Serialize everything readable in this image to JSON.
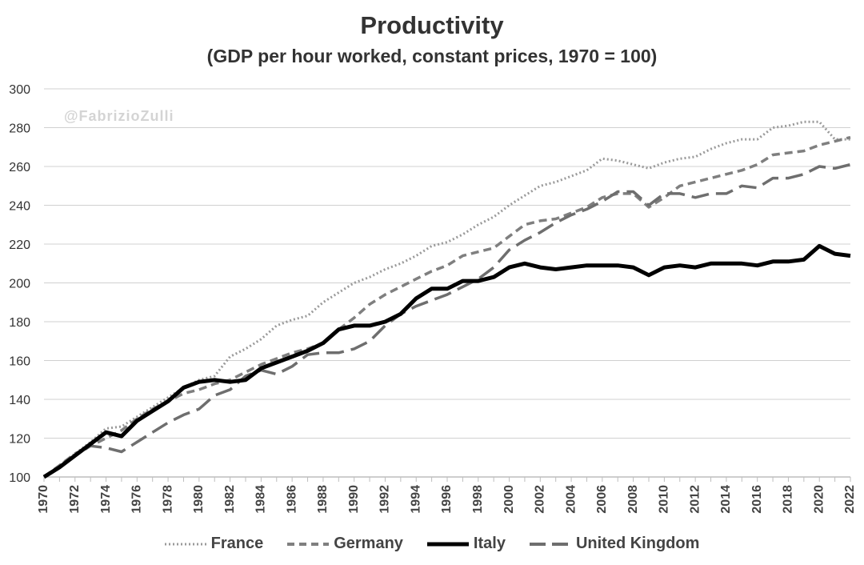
{
  "chart_data": {
    "type": "line",
    "title": "Productivity",
    "subtitle": "(GDP per hour worked, constant prices, 1970 = 100)",
    "watermark": "@FabrizioZulli",
    "xlabel": "",
    "ylabel": "",
    "x": [
      1970,
      1971,
      1972,
      1973,
      1974,
      1975,
      1976,
      1977,
      1978,
      1979,
      1980,
      1981,
      1982,
      1983,
      1984,
      1985,
      1986,
      1987,
      1988,
      1989,
      1990,
      1991,
      1992,
      1993,
      1994,
      1995,
      1996,
      1997,
      1998,
      1999,
      2000,
      2001,
      2002,
      2003,
      2004,
      2005,
      2006,
      2007,
      2008,
      2009,
      2010,
      2011,
      2012,
      2013,
      2014,
      2015,
      2016,
      2017,
      2018,
      2019,
      2020,
      2021,
      2022
    ],
    "x_tick_labels": [
      "1970",
      "1972",
      "1974",
      "1976",
      "1978",
      "1980",
      "1982",
      "1984",
      "1986",
      "1988",
      "1990",
      "1992",
      "1994",
      "1996",
      "1998",
      "2000",
      "2002",
      "2004",
      "2006",
      "2008",
      "2010",
      "2012",
      "2014",
      "2016",
      "2018",
      "2020",
      "2022"
    ],
    "ylim": [
      100,
      300
    ],
    "y_ticks": [
      100,
      120,
      140,
      160,
      180,
      200,
      220,
      240,
      260,
      280,
      300
    ],
    "grid": true,
    "legend_position": "bottom",
    "series": [
      {
        "name": "France",
        "style": "dotted",
        "color": "#9a9a9a",
        "values": [
          100,
          106,
          112,
          118,
          125,
          126,
          131,
          136,
          141,
          146,
          150,
          152,
          162,
          166,
          171,
          178,
          181,
          183,
          190,
          195,
          200,
          203,
          207,
          210,
          214,
          219,
          221,
          225,
          230,
          234,
          240,
          245,
          250,
          252,
          255,
          258,
          264,
          263,
          261,
          259,
          262,
          264,
          265,
          269,
          272,
          274,
          274,
          280,
          281,
          283,
          283,
          274,
          274
        ]
      },
      {
        "name": "Germany",
        "style": "dashed",
        "color": "#7f7f7f",
        "values": [
          100,
          106,
          112,
          116,
          120,
          124,
          130,
          135,
          139,
          143,
          145,
          148,
          150,
          154,
          158,
          161,
          164,
          166,
          169,
          176,
          182,
          189,
          194,
          198,
          202,
          206,
          209,
          214,
          216,
          218,
          224,
          230,
          232,
          233,
          236,
          239,
          244,
          246,
          246,
          239,
          244,
          250,
          252,
          254,
          256,
          258,
          261,
          266,
          267,
          268,
          271,
          273,
          275
        ]
      },
      {
        "name": "Italy",
        "style": "solid",
        "color": "#000000",
        "values": [
          100,
          105,
          111,
          117,
          123,
          121,
          129,
          134,
          139,
          146,
          149,
          150,
          149,
          150,
          156,
          159,
          162,
          165,
          169,
          176,
          178,
          178,
          180,
          184,
          192,
          197,
          197,
          201,
          201,
          203,
          208,
          210,
          208,
          207,
          208,
          209,
          209,
          209,
          208,
          204,
          208,
          209,
          208,
          210,
          210,
          210,
          209,
          211,
          211,
          212,
          219,
          215,
          214
        ]
      },
      {
        "name": "United Kingdom",
        "style": "longdash",
        "color": "#6e6e6e",
        "values": [
          100,
          105,
          111,
          116,
          115,
          113,
          118,
          123,
          128,
          132,
          135,
          142,
          145,
          152,
          155,
          153,
          157,
          163,
          164,
          164,
          166,
          170,
          178,
          184,
          188,
          191,
          194,
          198,
          202,
          208,
          217,
          222,
          226,
          231,
          235,
          238,
          242,
          247,
          247,
          240,
          246,
          246,
          244,
          246,
          246,
          250,
          249,
          254,
          254,
          256,
          260,
          259,
          261
        ]
      }
    ]
  }
}
